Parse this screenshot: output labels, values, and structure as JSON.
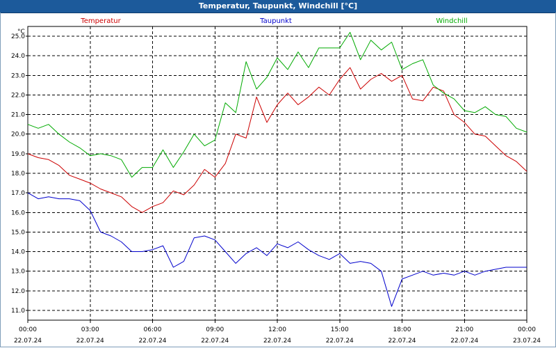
{
  "window": {
    "title": "Temperatur, Taupunkt, Windchill [°C]"
  },
  "chart_data": {
    "type": "line",
    "unit": "°C",
    "ylim": [
      10.5,
      25.5
    ],
    "yticks": [
      11.0,
      12.0,
      13.0,
      14.0,
      15.0,
      16.0,
      17.0,
      18.0,
      19.0,
      20.0,
      21.0,
      22.0,
      23.0,
      24.0,
      25.0
    ],
    "xlim": [
      0,
      24
    ],
    "xticks": [
      {
        "time": "00:00",
        "date": "22.07.24",
        "hour": 0
      },
      {
        "time": "03:00",
        "date": "22.07.24",
        "hour": 3
      },
      {
        "time": "06:00",
        "date": "22.07.24",
        "hour": 6
      },
      {
        "time": "09:00",
        "date": "22.07.24",
        "hour": 9
      },
      {
        "time": "12:00",
        "date": "22.07.24",
        "hour": 12
      },
      {
        "time": "15:00",
        "date": "22.07.24",
        "hour": 15
      },
      {
        "time": "18:00",
        "date": "22.07.24",
        "hour": 18
      },
      {
        "time": "21:00",
        "date": "22.07.24",
        "hour": 21
      },
      {
        "time": "00:00",
        "date": "23.07.24",
        "hour": 24
      }
    ],
    "grid": true,
    "series": [
      {
        "name": "Temperatur",
        "color": "#cc0000",
        "x": [
          0,
          0.5,
          1,
          1.5,
          2,
          2.5,
          3,
          3.5,
          4,
          4.5,
          5,
          5.5,
          6,
          6.5,
          7,
          7.5,
          8,
          8.5,
          9,
          9.5,
          10,
          10.5,
          11,
          11.5,
          12,
          12.5,
          13,
          13.5,
          14,
          14.5,
          15,
          15.5,
          16,
          16.5,
          17,
          17.5,
          18,
          18.5,
          19,
          19.5,
          20,
          20.5,
          21,
          21.5,
          22,
          22.5,
          23,
          23.5,
          24
        ],
        "values": [
          19.0,
          18.8,
          18.7,
          18.4,
          17.9,
          17.7,
          17.5,
          17.2,
          17.0,
          16.8,
          16.3,
          16.0,
          16.3,
          16.5,
          17.1,
          16.9,
          17.4,
          18.2,
          17.8,
          18.5,
          20.0,
          19.8,
          21.9,
          20.6,
          21.5,
          22.1,
          21.5,
          21.9,
          22.4,
          22.0,
          22.8,
          23.4,
          22.3,
          22.8,
          23.1,
          22.7,
          23.0,
          21.8,
          21.7,
          22.4,
          22.2,
          21.0,
          20.6,
          20.0,
          19.9,
          19.4,
          18.9,
          18.6,
          18.1
        ]
      },
      {
        "name": "Taupunkt",
        "color": "#0000cc",
        "x": [
          0,
          0.5,
          1,
          1.5,
          2,
          2.5,
          3,
          3.5,
          4,
          4.5,
          5,
          5.5,
          6,
          6.5,
          7,
          7.5,
          8,
          8.5,
          9,
          9.5,
          10,
          10.5,
          11,
          11.5,
          12,
          12.5,
          13,
          13.5,
          14,
          14.5,
          15,
          15.5,
          16,
          16.5,
          17,
          17.5,
          18,
          18.5,
          19,
          19.5,
          20,
          20.5,
          21,
          21.5,
          22,
          22.5,
          23,
          23.5,
          24
        ],
        "values": [
          17.0,
          16.7,
          16.8,
          16.7,
          16.7,
          16.6,
          16.1,
          15.0,
          14.8,
          14.5,
          14.0,
          14.0,
          14.1,
          14.3,
          13.2,
          13.5,
          14.7,
          14.8,
          14.6,
          14.0,
          13.4,
          13.9,
          14.2,
          13.8,
          14.4,
          14.2,
          14.5,
          14.1,
          13.8,
          13.6,
          13.9,
          13.4,
          13.5,
          13.4,
          13.0,
          11.2,
          12.6,
          12.8,
          13.0,
          12.8,
          12.9,
          12.8,
          13.0,
          12.8,
          13.0,
          13.1,
          13.2,
          13.2,
          13.2
        ]
      },
      {
        "name": "Windchill",
        "color": "#00aa00",
        "x": [
          0,
          0.5,
          1,
          1.5,
          2,
          2.5,
          3,
          3.5,
          4,
          4.5,
          5,
          5.5,
          6,
          6.5,
          7,
          7.5,
          8,
          8.5,
          9,
          9.5,
          10,
          10.5,
          11,
          11.5,
          12,
          12.5,
          13,
          13.5,
          14,
          14.5,
          15,
          15.5,
          16,
          16.5,
          17,
          17.5,
          18,
          18.5,
          19,
          19.5,
          20,
          20.5,
          21,
          21.5,
          22,
          22.5,
          23,
          23.5,
          24
        ],
        "values": [
          20.5,
          20.3,
          20.5,
          20.0,
          19.6,
          19.3,
          18.9,
          19.0,
          18.9,
          18.7,
          17.8,
          18.3,
          18.3,
          19.2,
          18.3,
          19.1,
          20.0,
          19.4,
          19.7,
          21.6,
          21.1,
          23.7,
          22.3,
          22.9,
          23.9,
          23.3,
          24.2,
          23.4,
          24.4,
          24.4,
          24.4,
          25.2,
          23.8,
          24.8,
          24.3,
          24.7,
          23.3,
          23.6,
          23.8,
          22.5,
          22.1,
          21.8,
          21.2,
          21.1,
          21.4,
          21.0,
          20.9,
          20.3,
          20.1
        ]
      }
    ]
  }
}
